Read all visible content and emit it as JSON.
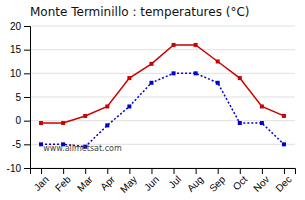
{
  "chart_data": {
    "type": "line",
    "title": "Monte Terminillo : temperatures (°C)",
    "categories": [
      "Jan",
      "Feb",
      "Mar",
      "Apr",
      "May",
      "Jun",
      "Jul",
      "Aug",
      "Sep",
      "Oct",
      "Nov",
      "Dec"
    ],
    "series": [
      {
        "color": "#cc0000",
        "marker": "square",
        "line_style": "solid",
        "values": [
          -0.5,
          -0.5,
          1.0,
          3.0,
          9.0,
          12.0,
          16.0,
          16.0,
          12.5,
          9.0,
          3.0,
          1.0
        ]
      },
      {
        "color": "#0000cc",
        "marker": "square",
        "line_style": "dotted",
        "values": [
          -5.0,
          -5.0,
          -5.5,
          -1.0,
          3.0,
          8.0,
          10.0,
          10.0,
          8.0,
          -0.5,
          -0.5,
          -5.0
        ]
      }
    ],
    "ylim": [
      -10,
      20
    ],
    "yticks": [
      -10,
      -5,
      0,
      5,
      10,
      15,
      20
    ],
    "grid": true,
    "annotations": [
      "www.allmetsat.com"
    ]
  }
}
